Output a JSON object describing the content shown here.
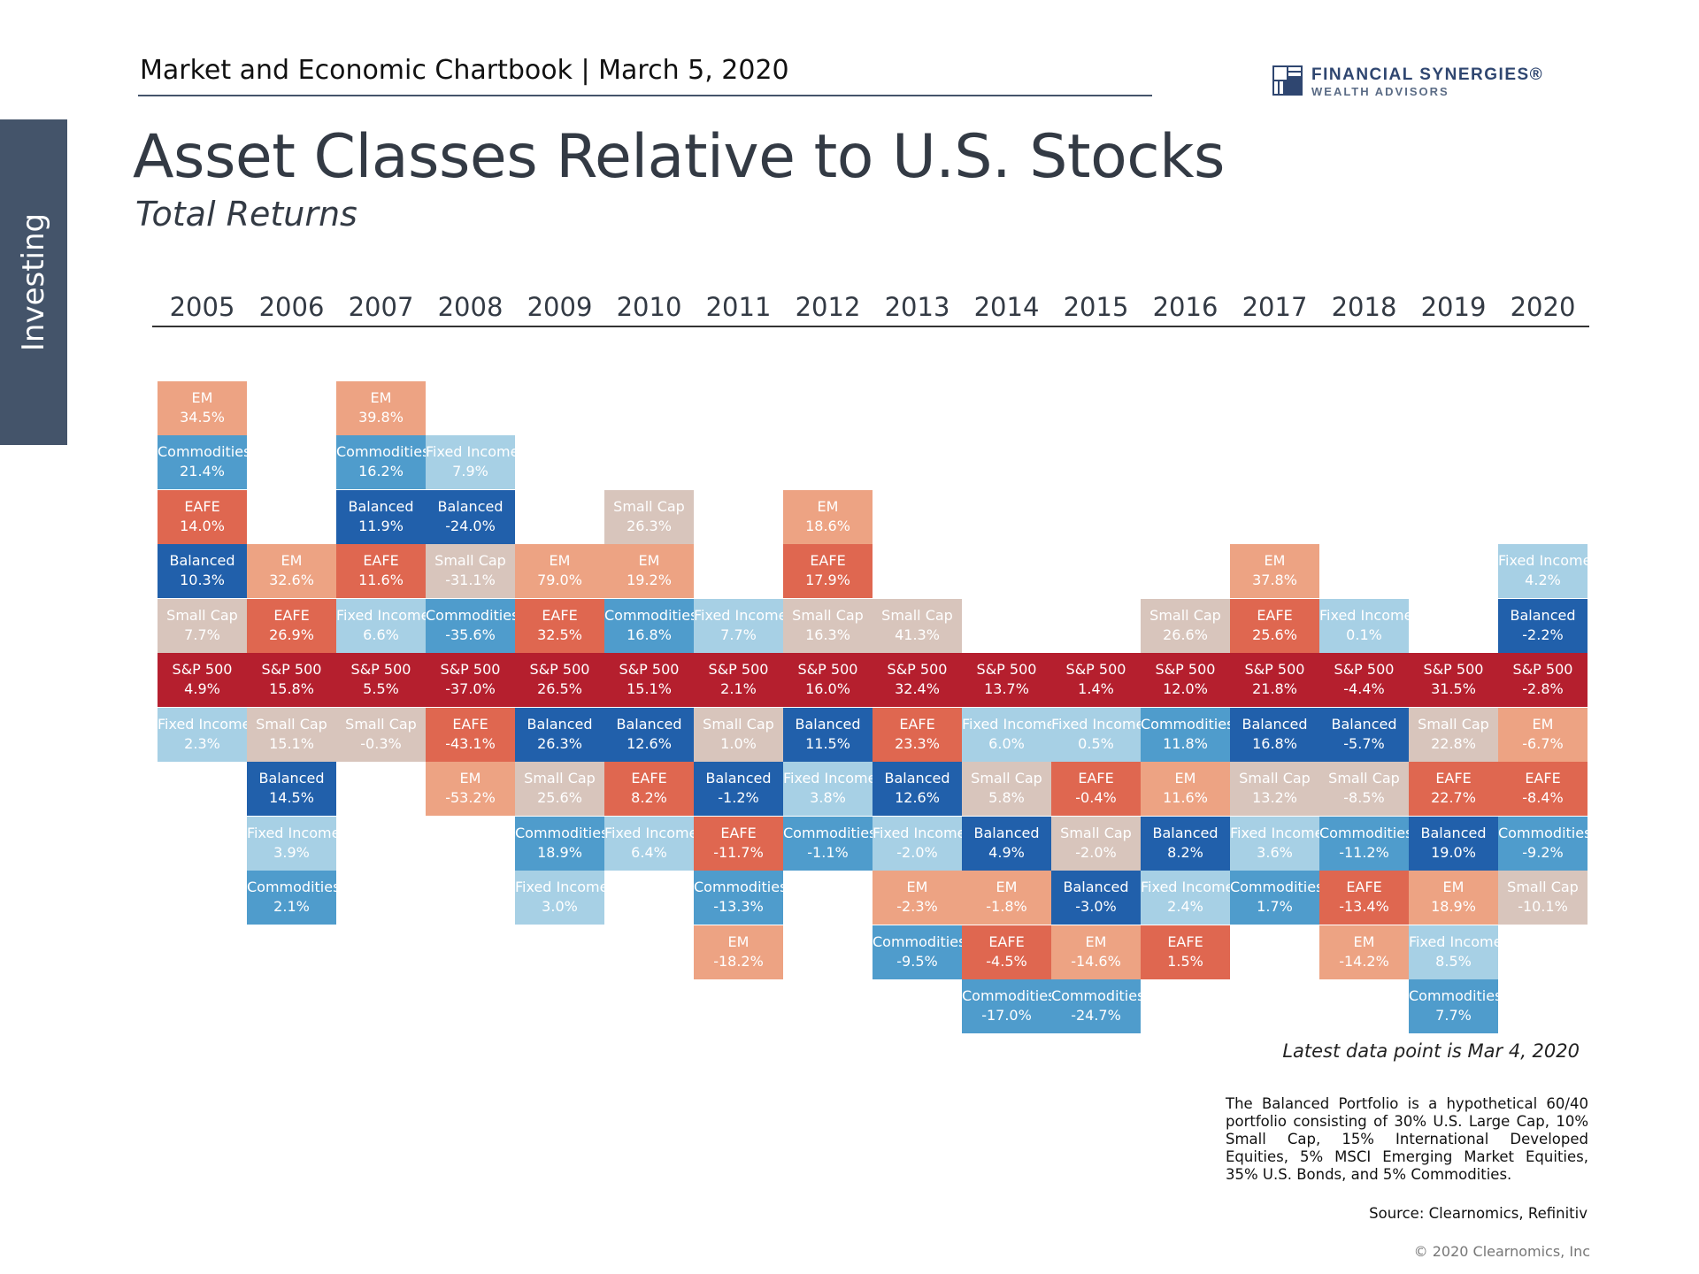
{
  "sidebar": {
    "label": "Investing"
  },
  "header": {
    "chartbook": "Market and Economic Chartbook | March 5, 2020"
  },
  "logo": {
    "name": "FINANCIAL SYNERGIES®",
    "sub": "WEALTH ADVISORS"
  },
  "colors": {
    "EM": "#eda383",
    "Commodities": "#4f9ccc",
    "EAFE": "#df6750",
    "Balanced": "#2160ab",
    "Small Cap": "#d8c5bc",
    "S&P 500": "#b51f2e",
    "Fixed Income": "#a7d0e5"
  },
  "chart_data": {
    "type": "table",
    "title": "Asset Classes Relative to U.S. Stocks",
    "subtitle": "Total Returns",
    "years": [
      "2005",
      "2006",
      "2007",
      "2008",
      "2009",
      "2010",
      "2011",
      "2012",
      "2013",
      "2014",
      "2015",
      "2016",
      "2017",
      "2018",
      "2019",
      "2020"
    ],
    "columns": [
      {
        "above": [
          [
            "EM",
            "34.5%"
          ],
          [
            "Commodities",
            "21.4%"
          ],
          [
            "EAFE",
            "14.0%"
          ],
          [
            "Balanced",
            "10.3%"
          ],
          [
            "Small Cap",
            "7.7%"
          ]
        ],
        "sp500": "4.9%",
        "below": [
          [
            "Fixed Income",
            "2.3%"
          ]
        ]
      },
      {
        "above": [
          [
            "EM",
            "32.6%"
          ],
          [
            "EAFE",
            "26.9%"
          ]
        ],
        "sp500": "15.8%",
        "below": [
          [
            "Small Cap",
            "15.1%"
          ],
          [
            "Balanced",
            "14.5%"
          ],
          [
            "Fixed Income",
            "3.9%"
          ],
          [
            "Commodities",
            "2.1%"
          ]
        ]
      },
      {
        "above": [
          [
            "EM",
            "39.8%"
          ],
          [
            "Commodities",
            "16.2%"
          ],
          [
            "Balanced",
            "11.9%"
          ],
          [
            "EAFE",
            "11.6%"
          ],
          [
            "Fixed Income",
            "6.6%"
          ]
        ],
        "sp500": "5.5%",
        "below": [
          [
            "Small Cap",
            "-0.3%"
          ]
        ]
      },
      {
        "above": [
          [
            "Fixed Income",
            "7.9%"
          ],
          [
            "Balanced",
            "-24.0%"
          ],
          [
            "Small Cap",
            "-31.1%"
          ],
          [
            "Commodities",
            "-35.6%"
          ]
        ],
        "sp500": "-37.0%",
        "below": [
          [
            "EAFE",
            "-43.1%"
          ],
          [
            "EM",
            "-53.2%"
          ]
        ]
      },
      {
        "above": [
          [
            "EM",
            "79.0%"
          ],
          [
            "EAFE",
            "32.5%"
          ]
        ],
        "sp500": "26.5%",
        "below": [
          [
            "Balanced",
            "26.3%"
          ],
          [
            "Small Cap",
            "25.6%"
          ],
          [
            "Commodities",
            "18.9%"
          ],
          [
            "Fixed Income",
            "3.0%"
          ]
        ]
      },
      {
        "above": [
          [
            "Small Cap",
            "26.3%"
          ],
          [
            "EM",
            "19.2%"
          ],
          [
            "Commodities",
            "16.8%"
          ]
        ],
        "sp500": "15.1%",
        "below": [
          [
            "Balanced",
            "12.6%"
          ],
          [
            "EAFE",
            "8.2%"
          ],
          [
            "Fixed Income",
            "6.4%"
          ]
        ]
      },
      {
        "above": [
          [
            "Fixed Income",
            "7.7%"
          ]
        ],
        "sp500": "2.1%",
        "below": [
          [
            "Small Cap",
            "1.0%"
          ],
          [
            "Balanced",
            "-1.2%"
          ],
          [
            "EAFE",
            "-11.7%"
          ],
          [
            "Commodities",
            "-13.3%"
          ],
          [
            "EM",
            "-18.2%"
          ]
        ]
      },
      {
        "above": [
          [
            "EM",
            "18.6%"
          ],
          [
            "EAFE",
            "17.9%"
          ],
          [
            "Small Cap",
            "16.3%"
          ]
        ],
        "sp500": "16.0%",
        "below": [
          [
            "Balanced",
            "11.5%"
          ],
          [
            "Fixed Income",
            "3.8%"
          ],
          [
            "Commodities",
            "-1.1%"
          ]
        ]
      },
      {
        "above": [
          [
            "Small Cap",
            "41.3%"
          ]
        ],
        "sp500": "32.4%",
        "below": [
          [
            "EAFE",
            "23.3%"
          ],
          [
            "Balanced",
            "12.6%"
          ],
          [
            "Fixed Income",
            "-2.0%"
          ],
          [
            "EM",
            "-2.3%"
          ],
          [
            "Commodities",
            "-9.5%"
          ]
        ]
      },
      {
        "above": [],
        "sp500": "13.7%",
        "below": [
          [
            "Fixed Income",
            "6.0%"
          ],
          [
            "Small Cap",
            "5.8%"
          ],
          [
            "Balanced",
            "4.9%"
          ],
          [
            "EM",
            "-1.8%"
          ],
          [
            "EAFE",
            "-4.5%"
          ],
          [
            "Commodities",
            "-17.0%"
          ]
        ]
      },
      {
        "above": [],
        "sp500": "1.4%",
        "below": [
          [
            "Fixed Income",
            "0.5%"
          ],
          [
            "EAFE",
            "-0.4%"
          ],
          [
            "Small Cap",
            "-2.0%"
          ],
          [
            "Balanced",
            "-3.0%"
          ],
          [
            "EM",
            "-14.6%"
          ],
          [
            "Commodities",
            "-24.7%"
          ]
        ]
      },
      {
        "above": [
          [
            "Small Cap",
            "26.6%"
          ]
        ],
        "sp500": "12.0%",
        "below": [
          [
            "Commodities",
            "11.8%"
          ],
          [
            "EM",
            "11.6%"
          ],
          [
            "Balanced",
            "8.2%"
          ],
          [
            "Fixed Income",
            "2.4%"
          ],
          [
            "EAFE",
            "1.5%"
          ]
        ]
      },
      {
        "above": [
          [
            "EM",
            "37.8%"
          ],
          [
            "EAFE",
            "25.6%"
          ]
        ],
        "sp500": "21.8%",
        "below": [
          [
            "Balanced",
            "16.8%"
          ],
          [
            "Small Cap",
            "13.2%"
          ],
          [
            "Fixed Income",
            "3.6%"
          ],
          [
            "Commodities",
            "1.7%"
          ]
        ]
      },
      {
        "above": [
          [
            "Fixed Income",
            "0.1%"
          ]
        ],
        "sp500": "-4.4%",
        "below": [
          [
            "Balanced",
            "-5.7%"
          ],
          [
            "Small Cap",
            "-8.5%"
          ],
          [
            "Commodities",
            "-11.2%"
          ],
          [
            "EAFE",
            "-13.4%"
          ],
          [
            "EM",
            "-14.2%"
          ]
        ]
      },
      {
        "above": [],
        "sp500": "31.5%",
        "below": [
          [
            "Small Cap",
            "22.8%"
          ],
          [
            "EAFE",
            "22.7%"
          ],
          [
            "Balanced",
            "19.0%"
          ],
          [
            "EM",
            "18.9%"
          ],
          [
            "Fixed Income",
            "8.5%"
          ],
          [
            "Commodities",
            "7.7%"
          ]
        ]
      },
      {
        "above": [
          [
            "Fixed Income",
            "4.2%"
          ],
          [
            "Balanced",
            "-2.2%"
          ]
        ],
        "sp500": "-2.8%",
        "below": [
          [
            "EM",
            "-6.7%"
          ],
          [
            "EAFE",
            "-8.4%"
          ],
          [
            "Commodities",
            "-9.2%"
          ],
          [
            "Small Cap",
            "-10.1%"
          ]
        ]
      }
    ],
    "sp500_label": "S&P 500"
  },
  "notes": {
    "latest": "Latest data point is Mar 4, 2020",
    "footnote": "The Balanced Portfolio is a hypothetical 60/40 portfolio consisting of 30% U.S. Large Cap, 10% Small Cap, 15% International Developed Equities, 5% MSCI Emerging Market Equities, 35% U.S. Bonds, and 5% Commodities.",
    "source": "Source: Clearnomics, Refinitiv",
    "copyright": "© 2020 Clearnomics, Inc"
  }
}
